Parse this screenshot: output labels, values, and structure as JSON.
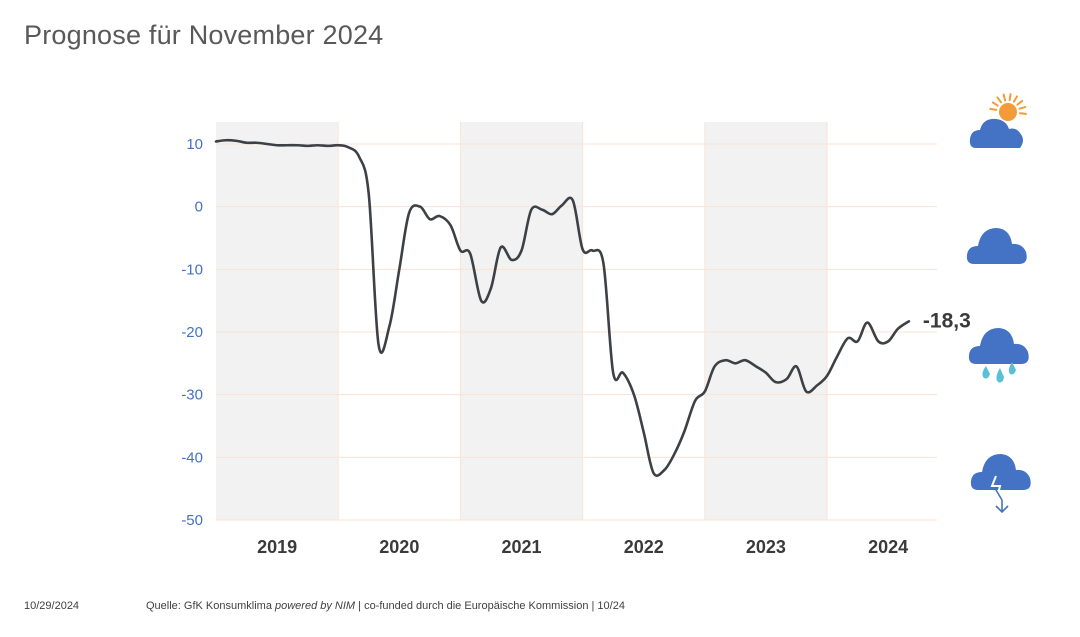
{
  "title": "Prognose für November 2024",
  "footer": {
    "date": "10/29/2024",
    "source_prefix": "Quelle: GfK Konsumklima ",
    "source_italic": "powered by NIM",
    "source_suffix": " | co-funded durch die Europäische Kommission | 10/24"
  },
  "weather_icons": [
    "sun-cloud-icon",
    "cloud-icon",
    "rain-cloud-icon",
    "storm-cloud-icon"
  ],
  "colors": {
    "line": "#3d4146",
    "band": "#f2f2f2",
    "grid": "#fbe3d6",
    "cloud": "#4472c4",
    "sun": "#f29b38",
    "rain": "#5bc0d6",
    "ytick": "#4472c4"
  },
  "chart_data": {
    "type": "line",
    "title": "",
    "xlabel": "",
    "ylabel": "",
    "ylim": [
      -50,
      13
    ],
    "yticks": [
      "10",
      "0",
      "-10",
      "-20",
      "-30",
      "-40",
      "-50"
    ],
    "xtick_labels": [
      "2019",
      "2020",
      "2021",
      "2022",
      "2023",
      "2024"
    ],
    "shaded_years": [
      "2019",
      "2021",
      "2023"
    ],
    "end_label": "-18,3",
    "series": [
      {
        "values": [
          [
            2019.0,
            10.4
          ],
          [
            2019.08,
            10.6
          ],
          [
            2019.17,
            10.5
          ],
          [
            2019.25,
            10.2
          ],
          [
            2019.33,
            10.2
          ],
          [
            2019.42,
            10.0
          ],
          [
            2019.5,
            9.8
          ],
          [
            2019.58,
            9.8
          ],
          [
            2019.67,
            9.8
          ],
          [
            2019.75,
            9.7
          ],
          [
            2019.83,
            9.8
          ],
          [
            2019.92,
            9.7
          ],
          [
            2020.0,
            9.8
          ],
          [
            2020.08,
            9.5
          ],
          [
            2020.17,
            8.0
          ],
          [
            2020.25,
            2.0
          ],
          [
            2020.33,
            -22.0
          ],
          [
            2020.42,
            -19.0
          ],
          [
            2020.5,
            -10.0
          ],
          [
            2020.58,
            -1.0
          ],
          [
            2020.67,
            0.0
          ],
          [
            2020.75,
            -2.0
          ],
          [
            2020.83,
            -1.5
          ],
          [
            2020.92,
            -3.0
          ],
          [
            2021.0,
            -7.0
          ],
          [
            2021.08,
            -7.5
          ],
          [
            2021.17,
            -15.0
          ],
          [
            2021.25,
            -13.0
          ],
          [
            2021.33,
            -6.5
          ],
          [
            2021.42,
            -8.5
          ],
          [
            2021.5,
            -7.0
          ],
          [
            2021.58,
            -0.5
          ],
          [
            2021.67,
            -0.5
          ],
          [
            2021.75,
            -1.2
          ],
          [
            2021.83,
            0.2
          ],
          [
            2021.92,
            1.0
          ],
          [
            2022.0,
            -6.8
          ],
          [
            2022.08,
            -7.0
          ],
          [
            2022.17,
            -9.0
          ],
          [
            2022.25,
            -26.5
          ],
          [
            2022.33,
            -26.5
          ],
          [
            2022.42,
            -30.0
          ],
          [
            2022.5,
            -36.0
          ],
          [
            2022.58,
            -42.5
          ],
          [
            2022.67,
            -42.0
          ],
          [
            2022.75,
            -39.5
          ],
          [
            2022.83,
            -36.0
          ],
          [
            2022.92,
            -31.0
          ],
          [
            2023.0,
            -29.5
          ],
          [
            2023.08,
            -25.5
          ],
          [
            2023.17,
            -24.5
          ],
          [
            2023.25,
            -25.0
          ],
          [
            2023.33,
            -24.5
          ],
          [
            2023.42,
            -25.5
          ],
          [
            2023.5,
            -26.5
          ],
          [
            2023.58,
            -28.0
          ],
          [
            2023.67,
            -27.5
          ],
          [
            2023.75,
            -25.5
          ],
          [
            2023.83,
            -29.5
          ],
          [
            2023.92,
            -28.5
          ],
          [
            2024.0,
            -27.0
          ],
          [
            2024.08,
            -24.0
          ],
          [
            2024.17,
            -21.0
          ],
          [
            2024.25,
            -21.5
          ],
          [
            2024.33,
            -18.5
          ],
          [
            2024.42,
            -21.5
          ],
          [
            2024.5,
            -21.5
          ],
          [
            2024.58,
            -19.5
          ],
          [
            2024.67,
            -18.3
          ]
        ]
      }
    ]
  }
}
